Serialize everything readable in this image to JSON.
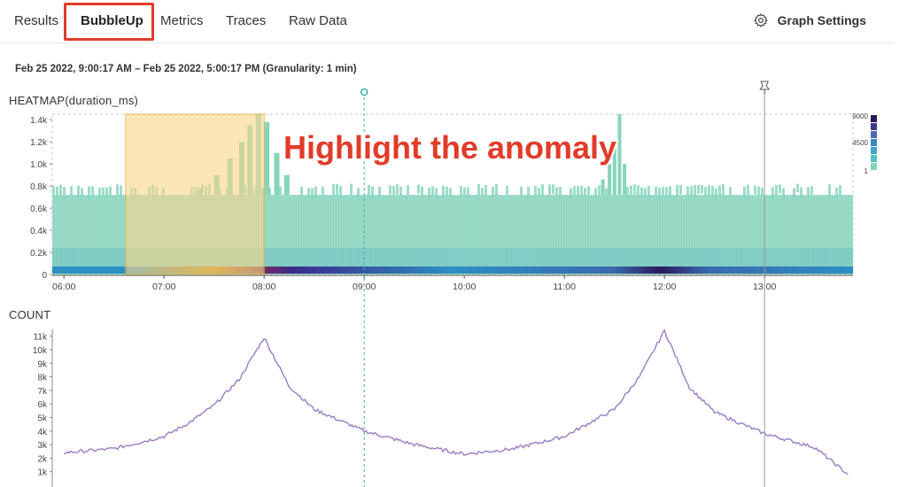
{
  "tabs": [
    {
      "label": "Results",
      "active": false
    },
    {
      "label": "BubbleUp",
      "active": true
    },
    {
      "label": "Metrics",
      "active": false
    },
    {
      "label": "Traces",
      "active": false
    },
    {
      "label": "Raw Data",
      "active": false
    }
  ],
  "graph_settings": {
    "label": "Graph Settings",
    "icon": "gear-icon"
  },
  "time_range": "Feb 25 2022, 9:00:17 AM – Feb 25 2022, 5:00:17 PM (Granularity: 1 min)",
  "annotation": "Highlight the anomaly",
  "colors": {
    "teal": "#86d4bc",
    "purple": "#9b7cc4",
    "selection": "#fbd78a",
    "highlight_box": "#e23b2a",
    "annotation_text": "#e23b2a"
  },
  "chart_data": [
    {
      "type": "heatmap",
      "title": "HEATMAP(duration_ms)",
      "x_ticks": [
        "06:00",
        "07:00",
        "08:00",
        "09:00",
        "10:00",
        "11:00",
        "12:00",
        "13:00"
      ],
      "y_ticks": [
        "0",
        "0.2k",
        "0.4k",
        "0.6k",
        "0.8k",
        "1.0k",
        "1.2k",
        "1.4k"
      ],
      "ylim": [
        0,
        1450
      ],
      "legend_ticks": [
        "9000",
        "4500",
        "1"
      ],
      "legend_placement": "top-right",
      "selection": {
        "x_start": "06:37",
        "x_end": "08:00"
      },
      "marker_time": "09:00",
      "pinned_time": "13:00"
    },
    {
      "type": "line",
      "title": "COUNT",
      "y_ticks": [
        "1k",
        "2k",
        "3k",
        "4k",
        "5k",
        "6k",
        "7k",
        "8k",
        "9k",
        "10k",
        "11k"
      ],
      "ylim": [
        0,
        11500
      ],
      "x": [
        "06:00",
        "06:30",
        "07:00",
        "07:15",
        "07:30",
        "07:45",
        "08:00",
        "08:15",
        "08:30",
        "09:00",
        "09:30",
        "10:00",
        "10:30",
        "11:00",
        "11:15",
        "11:30",
        "11:45",
        "12:00",
        "12:15",
        "12:30",
        "13:00",
        "13:30",
        "13:50"
      ],
      "values": [
        2400,
        2700,
        3600,
        4600,
        5900,
        7800,
        10900,
        7300,
        5600,
        4000,
        3000,
        2300,
        2700,
        3600,
        4600,
        5600,
        8000,
        11400,
        7200,
        5400,
        3800,
        2800,
        800
      ],
      "series": [
        {
          "values": [
            2400,
            2700,
            3600,
            4600,
            5900,
            7800,
            10900,
            7300,
            5600,
            4000,
            3000,
            2300,
            2700,
            3600,
            4600,
            5600,
            8000,
            11400,
            7200,
            5400,
            3800,
            2800,
            800
          ]
        }
      ]
    }
  ]
}
